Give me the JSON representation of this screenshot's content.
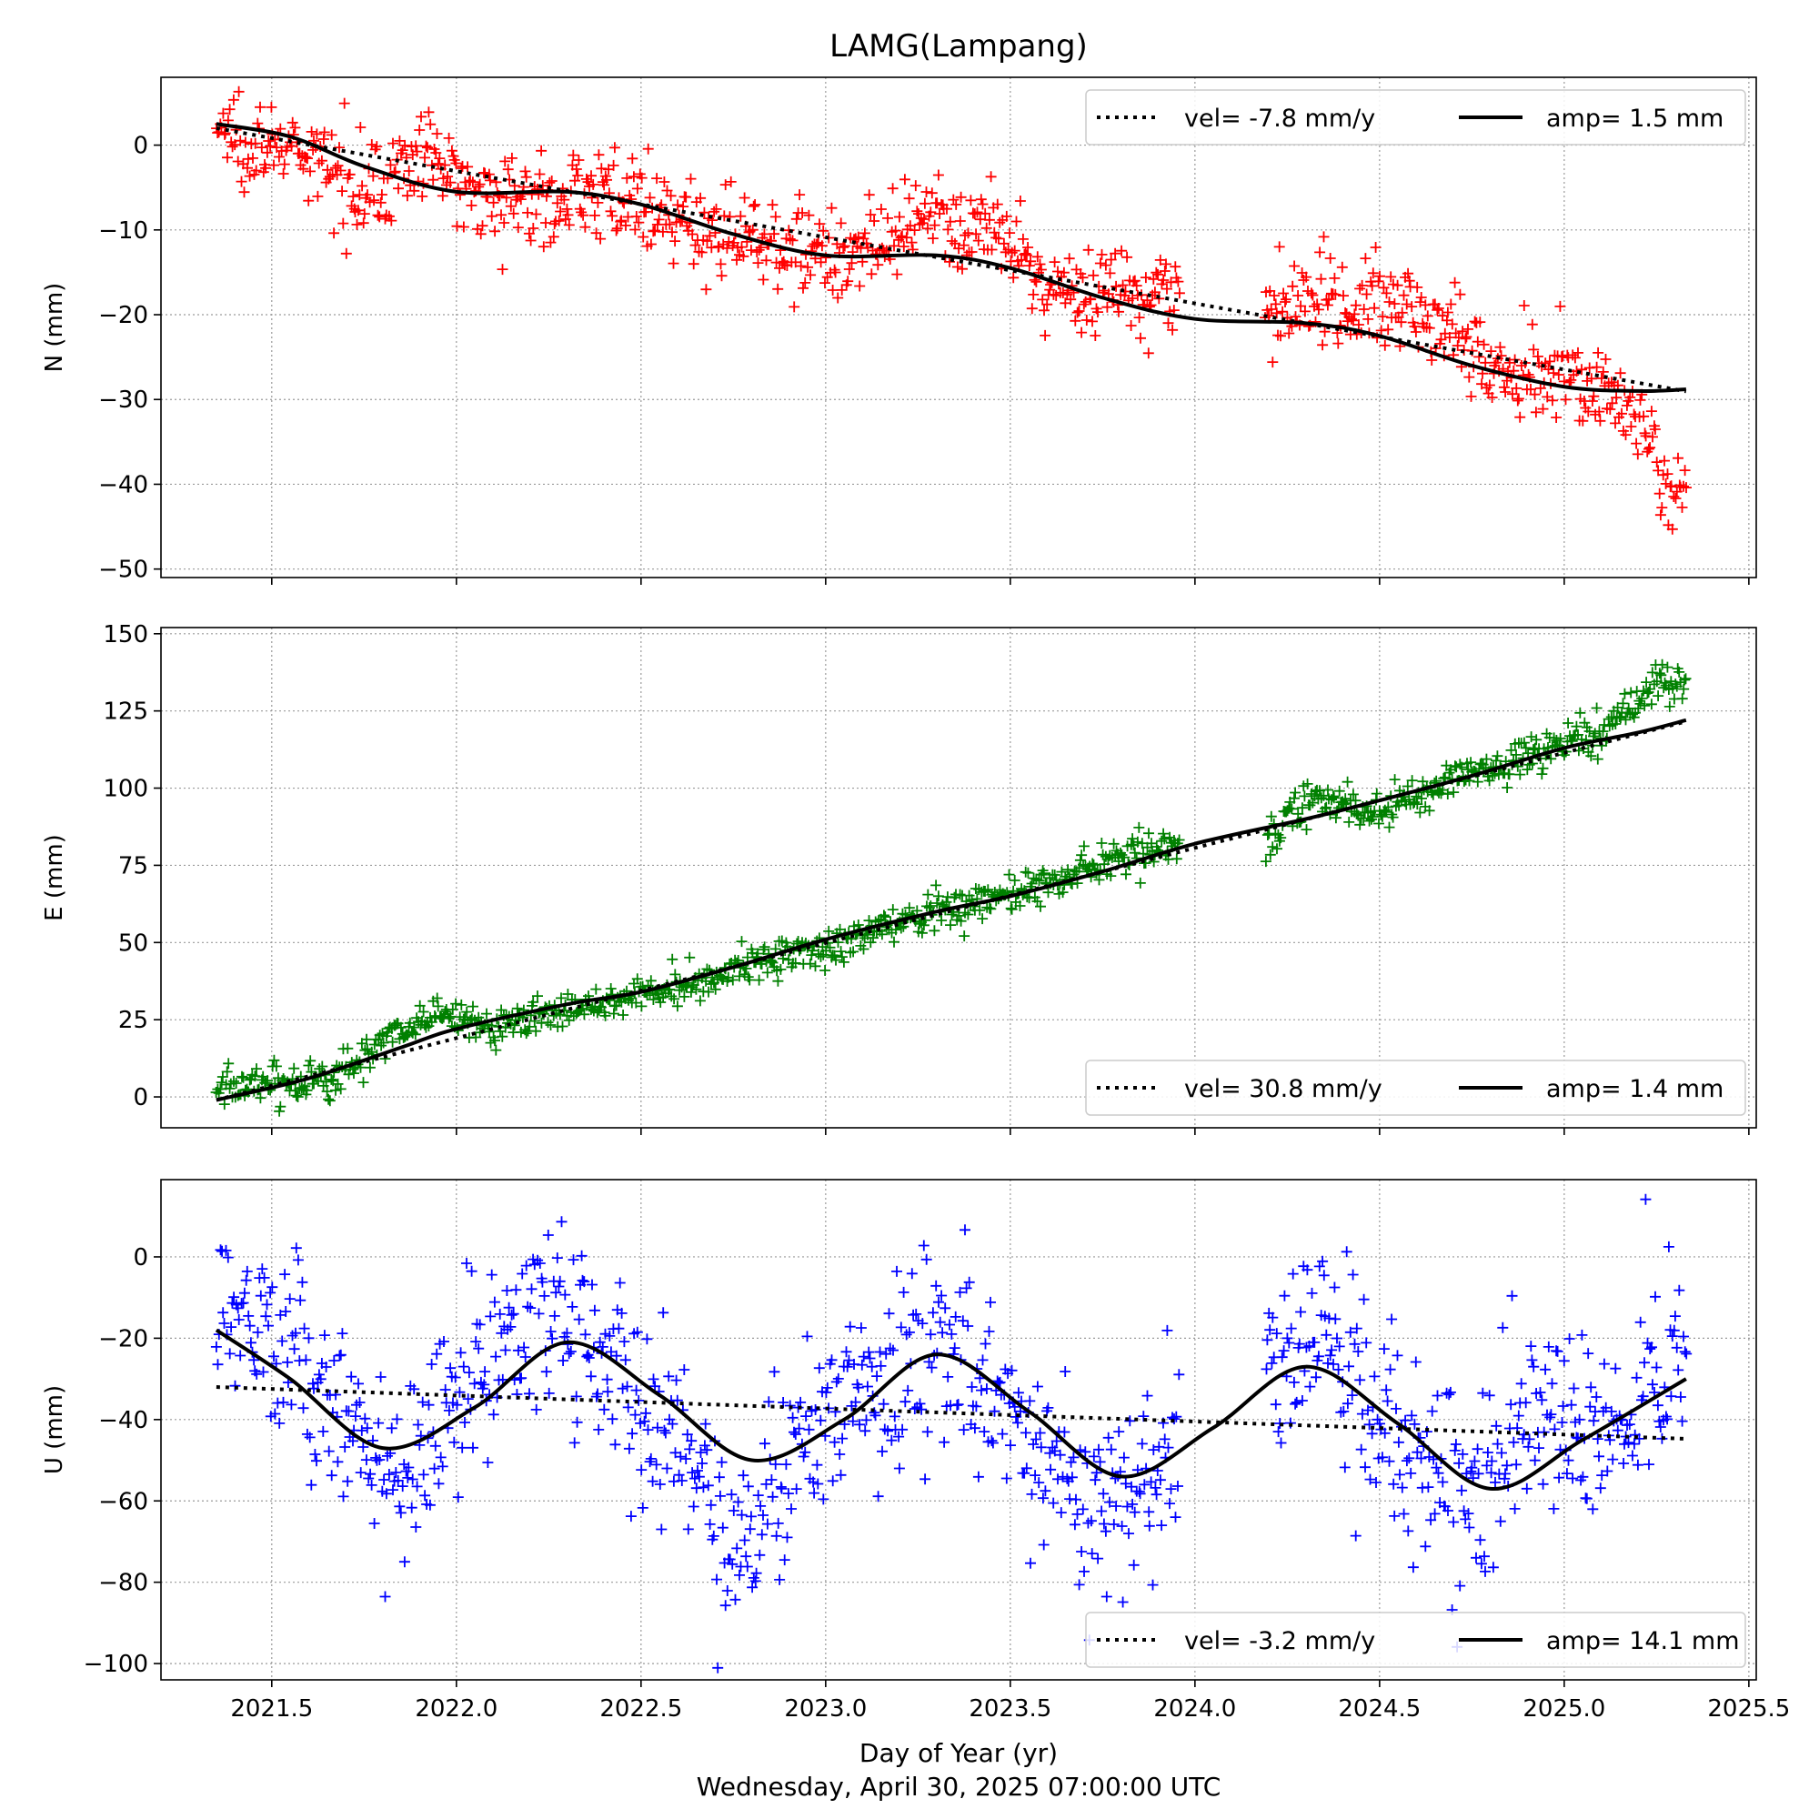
{
  "title": "LAMG(Lampang)",
  "xlabel": "Day of Year (yr)",
  "footer": "Wednesday, April 30, 2025 07:00:00 UTC",
  "x_ticks": [
    "2021.5",
    "2022.0",
    "2022.5",
    "2023.0",
    "2023.5",
    "2024.0",
    "2024.5",
    "2025.0",
    "2025.5"
  ],
  "chart_data": [
    {
      "type": "scatter",
      "component": "N",
      "ylabel": "N (mm)",
      "xlim": [
        2021.2,
        2025.52
      ],
      "ylim": [
        -51,
        8
      ],
      "yticks": [
        0,
        -10,
        -20,
        -30,
        -40,
        -50
      ],
      "ytick_labels": [
        "0",
        "−10",
        "−20",
        "−30",
        "−40",
        "−50"
      ],
      "marker_color": "#ff0000",
      "legend": {
        "placement": "top-right",
        "vel_label": "vel= -7.8 mm/y",
        "amp_label": "amp= 1.5 mm"
      },
      "trend": {
        "x0": 2021.35,
        "y0": 2.0,
        "velocity": -7.8
      },
      "seasonal_fit": {
        "amplitude": 1.5
      },
      "data_x_range": [
        2021.35,
        2025.33
      ],
      "fit_curve": {
        "x": [
          2021.35,
          2021.55,
          2021.75,
          2022.0,
          2022.3,
          2022.5,
          2022.75,
          2023.0,
          2023.3,
          2023.5,
          2023.75,
          2024.0,
          2024.3,
          2024.5,
          2024.75,
          2025.0,
          2025.2,
          2025.33
        ],
        "y": [
          2.5,
          1.0,
          -2.5,
          -5.5,
          -5.5,
          -7.0,
          -10.5,
          -13.0,
          -13.0,
          -14.5,
          -18.0,
          -20.5,
          -21.0,
          -22.5,
          -26.0,
          -28.5,
          -29.0,
          -28.8
        ]
      },
      "observations": {
        "x": [
          2021.35,
          2021.5,
          2021.65,
          2021.8,
          2021.9,
          2022.0,
          2022.2,
          2022.4,
          2022.55,
          2022.7,
          2022.85,
          2023.0,
          2023.15,
          2023.3,
          2023.45,
          2023.6,
          2023.75,
          2023.9,
          2024.2,
          2024.35,
          2024.5,
          2024.65,
          2024.8,
          2024.95,
          2025.1,
          2025.2,
          2025.27,
          2025.33
        ],
        "y": [
          2.0,
          0.0,
          -3.0,
          -5.0,
          -1.0,
          -4.0,
          -7.0,
          -5.0,
          -9.0,
          -10.0,
          -11.0,
          -13.0,
          -12.0,
          -9.0,
          -10.0,
          -17.0,
          -17.0,
          -17.0,
          -20.0,
          -18.0,
          -19.0,
          -20.0,
          -26.0,
          -27.0,
          -28.0,
          -32.0,
          -40.0,
          -42.0
        ]
      }
    },
    {
      "type": "scatter",
      "component": "E",
      "ylabel": "E (mm)",
      "xlim": [
        2021.2,
        2025.52
      ],
      "ylim": [
        -10,
        152
      ],
      "yticks": [
        0,
        25,
        50,
        75,
        100,
        125,
        150
      ],
      "ytick_labels": [
        "0",
        "25",
        "50",
        "75",
        "100",
        "125",
        "150"
      ],
      "marker_color": "#008000",
      "legend": {
        "placement": "bottom-right",
        "vel_label": "vel= 30.8 mm/y",
        "amp_label": "amp= 1.4 mm"
      },
      "trend": {
        "x0": 2021.35,
        "y0": -1.0,
        "velocity": 30.8
      },
      "seasonal_fit": {
        "amplitude": 1.4
      },
      "data_x_range": [
        2021.35,
        2025.33
      ],
      "fit_curve": {
        "x": [
          2021.35,
          2021.6,
          2021.85,
          2022.0,
          2022.3,
          2022.5,
          2022.75,
          2023.0,
          2023.3,
          2023.5,
          2023.75,
          2024.0,
          2024.3,
          2024.5,
          2024.75,
          2025.0,
          2025.2,
          2025.33
        ],
        "y": [
          -1.0,
          6.0,
          16.0,
          22.0,
          30.0,
          34.0,
          42.0,
          51.0,
          60.0,
          65.0,
          73.0,
          82.0,
          90.0,
          96.0,
          104.0,
          113.0,
          118.0,
          122.0
        ]
      },
      "observations": {
        "x": [
          2021.35,
          2021.5,
          2021.65,
          2021.8,
          2021.95,
          2022.1,
          2022.3,
          2022.5,
          2022.7,
          2022.85,
          2023.0,
          2023.2,
          2023.4,
          2023.6,
          2023.8,
          2023.95,
          2024.15,
          2024.3,
          2024.5,
          2024.7,
          2024.9,
          2025.1,
          2025.25,
          2025.33
        ],
        "y": [
          2.0,
          5.0,
          5.0,
          18.0,
          27.0,
          22.0,
          28.0,
          33.0,
          40.0,
          45.0,
          47.0,
          57.0,
          63.0,
          68.0,
          78.0,
          82.0,
          78.0,
          96.0,
          92.0,
          103.0,
          110.0,
          117.0,
          135.0,
          135.0
        ]
      }
    },
    {
      "type": "scatter",
      "component": "U",
      "ylabel": "U (mm)",
      "xlim": [
        2021.2,
        2025.52
      ],
      "ylim": [
        -104,
        19
      ],
      "yticks": [
        0,
        -20,
        -40,
        -60,
        -80,
        -100
      ],
      "ytick_labels": [
        "0",
        "−20",
        "−40",
        "−60",
        "−80",
        "−100"
      ],
      "marker_color": "#0000ff",
      "legend": {
        "placement": "bottom-right",
        "vel_label": "vel= -3.2 mm/y",
        "amp_label": "amp= 14.1 mm"
      },
      "trend": {
        "x0": 2021.35,
        "y0": -32.0,
        "velocity": -3.2
      },
      "seasonal_fit": {
        "amplitude": 14.1
      },
      "data_x_range": [
        2021.35,
        2025.33
      ],
      "fit_curve": {
        "x": [
          2021.35,
          2021.55,
          2021.8,
          2022.05,
          2022.3,
          2022.55,
          2022.8,
          2023.05,
          2023.3,
          2023.55,
          2023.8,
          2024.05,
          2024.3,
          2024.55,
          2024.8,
          2025.05,
          2025.33
        ],
        "y": [
          -18.0,
          -30.0,
          -47.0,
          -37.0,
          -21.0,
          -34.0,
          -50.0,
          -40.0,
          -24.0,
          -38.0,
          -54.0,
          -42.0,
          -27.0,
          -41.0,
          -57.0,
          -45.0,
          -30.0
        ]
      },
      "observations": {
        "x": [
          2021.35,
          2021.45,
          2021.6,
          2021.75,
          2021.85,
          2022.0,
          2022.15,
          2022.3,
          2022.45,
          2022.6,
          2022.75,
          2022.85,
          2023.0,
          2023.15,
          2023.3,
          2023.45,
          2023.6,
          2023.75,
          2023.9,
          2024.15,
          2024.3,
          2024.45,
          2024.6,
          2024.75,
          2024.9,
          2025.1,
          2025.25,
          2025.33
        ],
        "y": [
          -15.0,
          -10.0,
          -30.0,
          -45.0,
          -55.0,
          -35.0,
          -18.0,
          -15.0,
          -30.0,
          -45.0,
          -70.0,
          -55.0,
          -40.0,
          -30.0,
          -20.0,
          -35.0,
          -50.0,
          -65.0,
          -50.0,
          -25.0,
          -20.0,
          -30.0,
          -50.0,
          -60.0,
          -35.0,
          -45.0,
          -30.0,
          -25.0
        ]
      }
    }
  ]
}
